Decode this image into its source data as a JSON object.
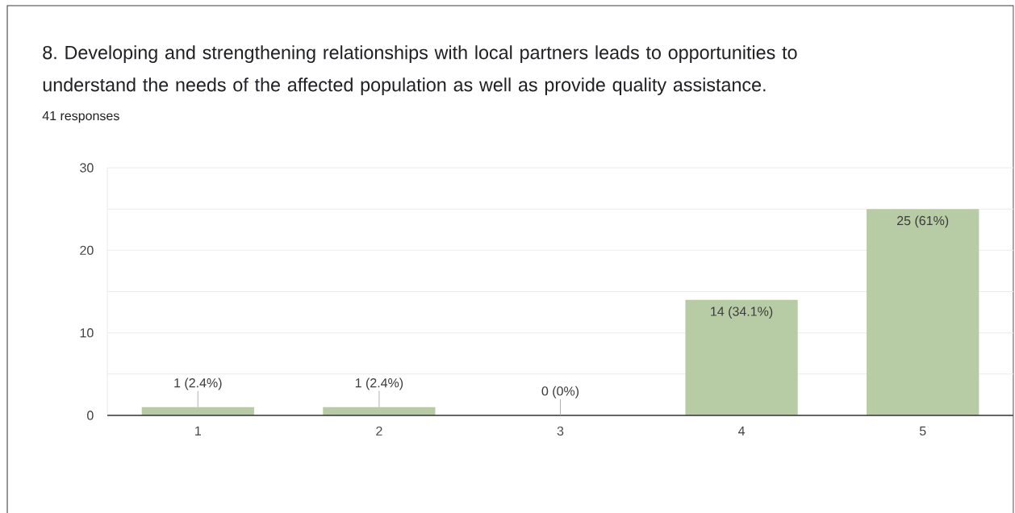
{
  "chart_data": {
    "type": "bar",
    "title": "8. Developing and strengthening relationships with local partners leads to opportunities to understand the needs of the affected population as well as provide quality assistance.",
    "subtitle": "41 responses",
    "categories": [
      "1",
      "2",
      "3",
      "4",
      "5"
    ],
    "values": [
      1,
      1,
      0,
      14,
      25
    ],
    "value_labels": [
      "1 (2.4%)",
      "1 (2.4%)",
      "0 (0%)",
      "14 (34.1%)",
      "25 (61%)"
    ],
    "color": "#b7cca4",
    "ylim": [
      0,
      30
    ],
    "yticks": [
      0,
      {
        "value": 5,
        "label": null
      },
      10,
      {
        "value": 15,
        "label": null
      },
      20,
      {
        "value": 25,
        "label": null
      },
      30
    ],
    "grid": "y"
  }
}
